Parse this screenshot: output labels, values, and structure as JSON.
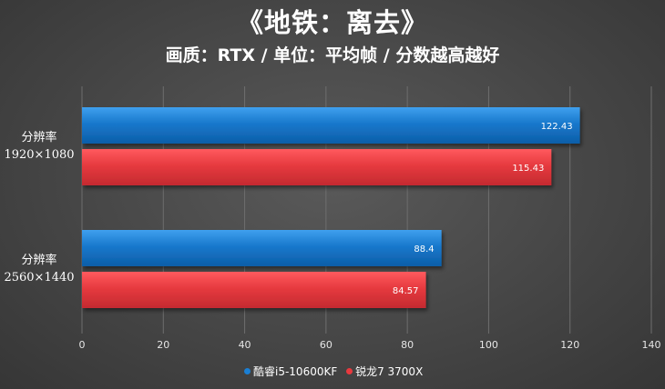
{
  "title": "《地铁：离去》",
  "subtitle": "画质：RTX / 单位：平均帧 / 分数越高越好",
  "chart_data": {
    "type": "bar",
    "orientation": "horizontal",
    "categories": [
      [
        "分辨率",
        "1920×1080"
      ],
      [
        "分辨率",
        "2560×1440"
      ]
    ],
    "series": [
      {
        "name": "酷睿i5-10600KF",
        "color": "#1a7fd4",
        "values": [
          122.43,
          88.4
        ]
      },
      {
        "name": "锐龙7 3700X",
        "color": "#e8393e",
        "values": [
          115.43,
          84.57
        ]
      }
    ],
    "xlim": [
      0,
      140
    ],
    "xticks": [
      0,
      20,
      40,
      60,
      80,
      100,
      120,
      140
    ],
    "grid": true,
    "legend_position": "bottom"
  }
}
